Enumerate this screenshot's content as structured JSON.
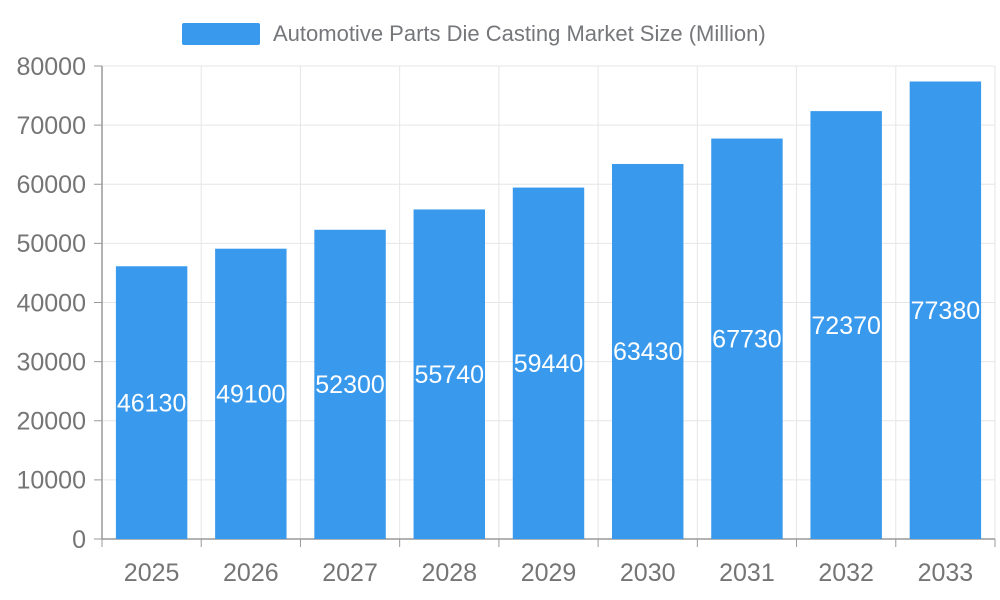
{
  "legend": {
    "label": "Automotive Parts Die Casting Market Size (Million)"
  },
  "chart_data": {
    "type": "bar",
    "title": "Automotive Parts Die Casting Market Size (Million)",
    "series_name": "Automotive Parts Die Casting Market Size (Million)",
    "categories": [
      "2025",
      "2026",
      "2027",
      "2028",
      "2029",
      "2030",
      "2031",
      "2032",
      "2033"
    ],
    "values": [
      46130,
      49100,
      52300,
      55740,
      59440,
      63430,
      67730,
      72370,
      77380
    ],
    "value_labels": [
      "46130",
      "49100",
      "52300",
      "55740",
      "59440",
      "63430",
      "67730",
      "72370",
      "77380"
    ],
    "xlabel": "",
    "ylabel": "",
    "ylim": [
      0,
      80000
    ],
    "ytick_interval": 10000,
    "ytick_labels": [
      "0",
      "10000",
      "20000",
      "30000",
      "40000",
      "50000",
      "60000",
      "70000",
      "80000"
    ],
    "grid": true,
    "legend_position": "top",
    "colors": {
      "bar": "#3999EC",
      "bar_label": "#FFFFFF",
      "axis_line": "#999999",
      "gridline": "#E6E6E6",
      "tick_label": "#757575",
      "legend_text": "#75777A",
      "background": "#FFFFFF"
    }
  }
}
